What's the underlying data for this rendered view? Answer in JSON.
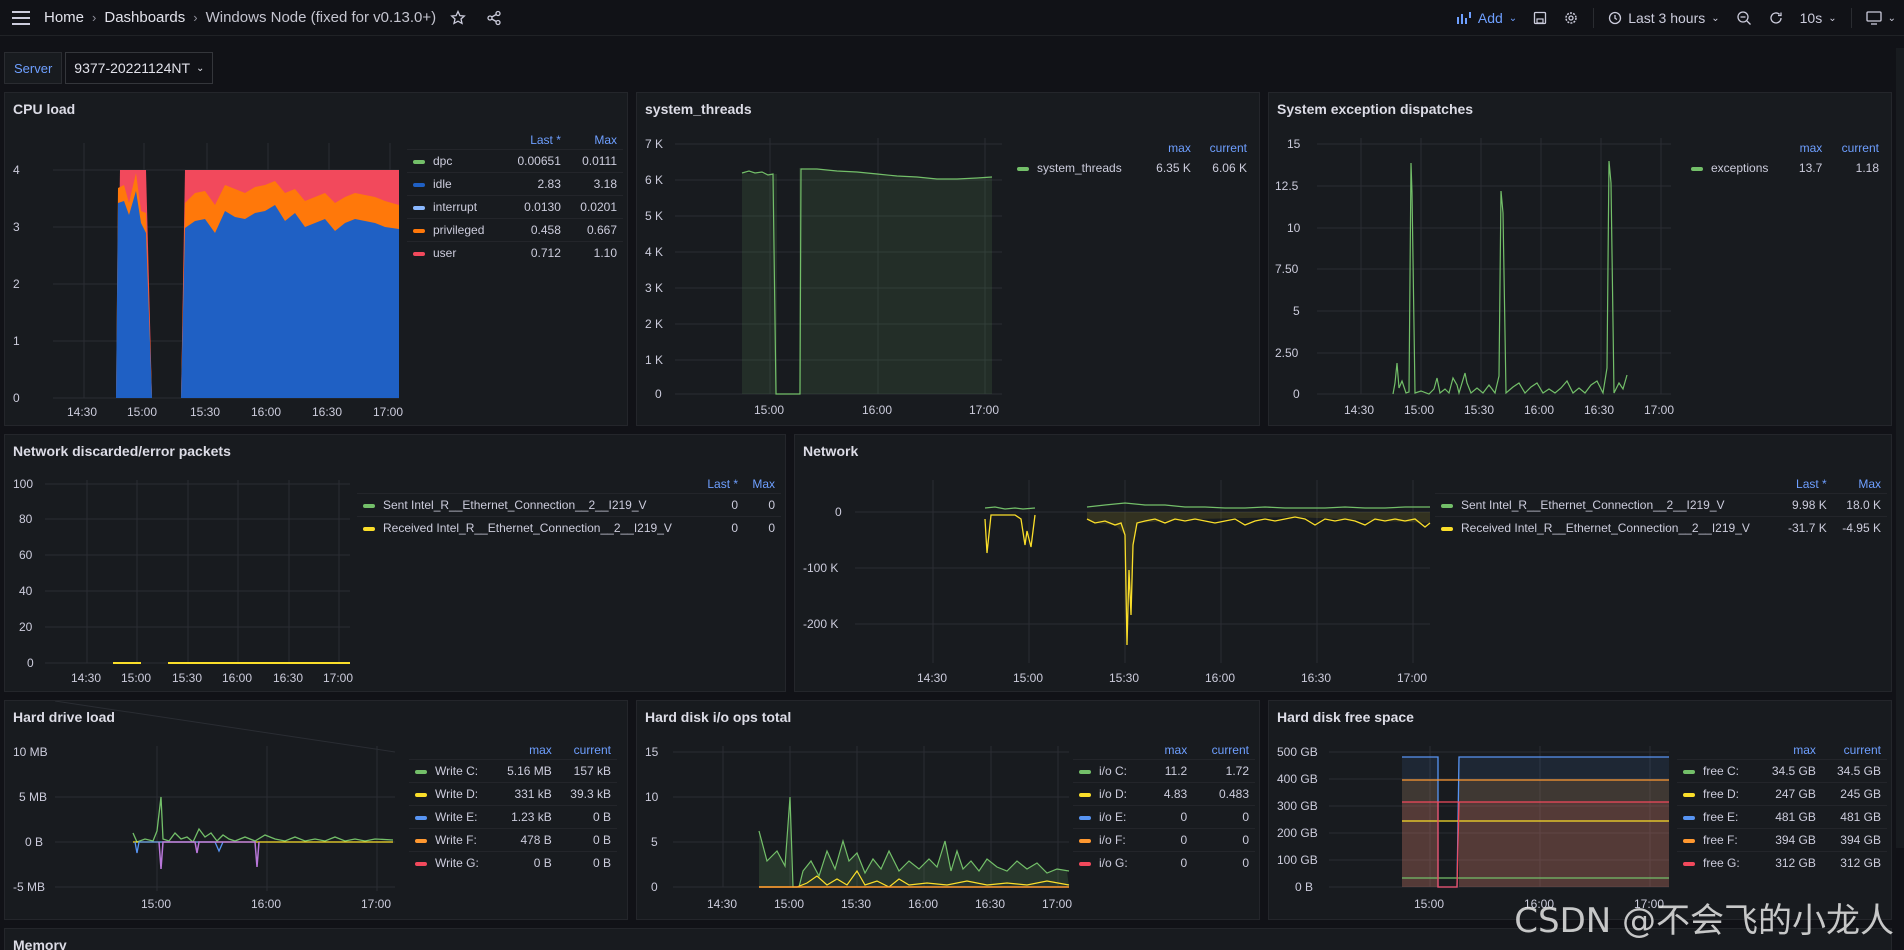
{
  "topbar": {
    "breadcrumbs": [
      "Home",
      "Dashboards",
      "Windows Node (fixed for v0.13.0+)"
    ],
    "add_label": "Add",
    "time_range": "Last 3 hours",
    "refresh": "10s"
  },
  "variables": {
    "server_label": "Server",
    "server_value": "9377-20221124NT"
  },
  "panels": {
    "cpu": {
      "title": "CPU load",
      "headers": [
        "Last *",
        "Max"
      ],
      "rows": [
        {
          "name": "dpc",
          "color": "#73bf69",
          "a": "0.00651",
          "b": "0.0111"
        },
        {
          "name": "idle",
          "color": "#1f60c4",
          "a": "2.83",
          "b": "3.18"
        },
        {
          "name": "interrupt",
          "color": "#8ab8ff",
          "a": "0.0130",
          "b": "0.0201"
        },
        {
          "name": "privileged",
          "color": "#ff780a",
          "a": "0.458",
          "b": "0.667"
        },
        {
          "name": "user",
          "color": "#f2495c",
          "a": "0.712",
          "b": "1.10"
        }
      ],
      "yticks": [
        "4",
        "3",
        "2",
        "1",
        "0"
      ],
      "xticks": [
        "14:30",
        "15:00",
        "15:30",
        "16:00",
        "16:30",
        "17:00"
      ]
    },
    "threads": {
      "title": "system_threads",
      "headers": [
        "max",
        "current"
      ],
      "rows": [
        {
          "name": "system_threads",
          "color": "#73bf69",
          "a": "6.35 K",
          "b": "6.06 K"
        }
      ],
      "yticks": [
        "7 K",
        "6 K",
        "5 K",
        "4 K",
        "3 K",
        "2 K",
        "1 K",
        "0"
      ],
      "xticks": [
        "15:00",
        "16:00",
        "17:00"
      ]
    },
    "exceptions": {
      "title": "System exception dispatches",
      "headers": [
        "max",
        "current"
      ],
      "rows": [
        {
          "name": "exceptions",
          "color": "#73bf69",
          "a": "13.7",
          "b": "1.18"
        }
      ],
      "yticks": [
        "15",
        "12.5",
        "10",
        "7.50",
        "5",
        "2.50",
        "0"
      ],
      "xticks": [
        "14:30",
        "15:00",
        "15:30",
        "16:00",
        "16:30",
        "17:00"
      ]
    },
    "neterr": {
      "title": "Network discarded/error packets",
      "headers": [
        "Last *",
        "Max"
      ],
      "rows": [
        {
          "name": "Sent Intel_R__Ethernet_Connection__2__I219_V",
          "color": "#73bf69",
          "a": "0",
          "b": "0"
        },
        {
          "name": "Received Intel_R__Ethernet_Connection__2__I219_V",
          "color": "#fade2a",
          "a": "0",
          "b": "0"
        }
      ],
      "yticks": [
        "100",
        "80",
        "60",
        "40",
        "20",
        "0"
      ],
      "xticks": [
        "14:30",
        "15:00",
        "15:30",
        "16:00",
        "16:30",
        "17:00"
      ]
    },
    "network": {
      "title": "Network",
      "headers": [
        "Last *",
        "Max"
      ],
      "rows": [
        {
          "name": "Sent Intel_R__Ethernet_Connection__2__I219_V",
          "color": "#73bf69",
          "a": "9.98 K",
          "b": "18.0 K"
        },
        {
          "name": "Received Intel_R__Ethernet_Connection__2__I219_V",
          "color": "#fade2a",
          "a": "-31.7 K",
          "b": "-4.95 K"
        }
      ],
      "yticks": [
        "0",
        "-100 K",
        "-200 K"
      ],
      "xticks": [
        "14:30",
        "15:00",
        "15:30",
        "16:00",
        "16:30",
        "17:00"
      ]
    },
    "hdload": {
      "title": "Hard drive load",
      "headers": [
        "max",
        "current"
      ],
      "rows": [
        {
          "name": "Write C:",
          "color": "#73bf69",
          "a": "5.16 MB",
          "b": "157 kB"
        },
        {
          "name": "Write D:",
          "color": "#fade2a",
          "a": "331 kB",
          "b": "39.3 kB"
        },
        {
          "name": "Write E:",
          "color": "#5794f2",
          "a": "1.23 kB",
          "b": "0 B"
        },
        {
          "name": "Write F:",
          "color": "#ff9830",
          "a": "478 B",
          "b": "0 B"
        },
        {
          "name": "Write G:",
          "color": "#f2495c",
          "a": "0 B",
          "b": "0 B"
        }
      ],
      "yticks": [
        "10 MB",
        "5 MB",
        "0 B",
        "-5 MB"
      ],
      "xticks": [
        "15:00",
        "16:00",
        "17:00"
      ]
    },
    "hdio": {
      "title": "Hard disk i/o ops total",
      "headers": [
        "max",
        "current"
      ],
      "rows": [
        {
          "name": "i/o C:",
          "color": "#73bf69",
          "a": "11.2",
          "b": "1.72"
        },
        {
          "name": "i/o D:",
          "color": "#fade2a",
          "a": "4.83",
          "b": "0.483"
        },
        {
          "name": "i/o E:",
          "color": "#5794f2",
          "a": "0",
          "b": "0"
        },
        {
          "name": "i/o F:",
          "color": "#ff9830",
          "a": "0",
          "b": "0"
        },
        {
          "name": "i/o G:",
          "color": "#f2495c",
          "a": "0",
          "b": "0"
        }
      ],
      "yticks": [
        "15",
        "10",
        "5",
        "0"
      ],
      "xticks": [
        "14:30",
        "15:00",
        "15:30",
        "16:00",
        "16:30",
        "17:00"
      ]
    },
    "hdfree": {
      "title": "Hard disk free space",
      "headers": [
        "max",
        "current"
      ],
      "rows": [
        {
          "name": "free C:",
          "color": "#73bf69",
          "a": "34.5 GB",
          "b": "34.5 GB"
        },
        {
          "name": "free D:",
          "color": "#fade2a",
          "a": "247 GB",
          "b": "245 GB"
        },
        {
          "name": "free E:",
          "color": "#5794f2",
          "a": "481 GB",
          "b": "481 GB"
        },
        {
          "name": "free F:",
          "color": "#ff9830",
          "a": "394 GB",
          "b": "394 GB"
        },
        {
          "name": "free G:",
          "color": "#f2495c",
          "a": "312 GB",
          "b": "312 GB"
        }
      ],
      "yticks": [
        "500 GB",
        "400 GB",
        "300 GB",
        "200 GB",
        "100 GB",
        "0 B"
      ],
      "xticks": [
        "15:00",
        "16:00",
        "17:00"
      ]
    },
    "memory": {
      "title": "Memory"
    }
  },
  "watermark": "CSDN @不会飞的小龙人"
}
